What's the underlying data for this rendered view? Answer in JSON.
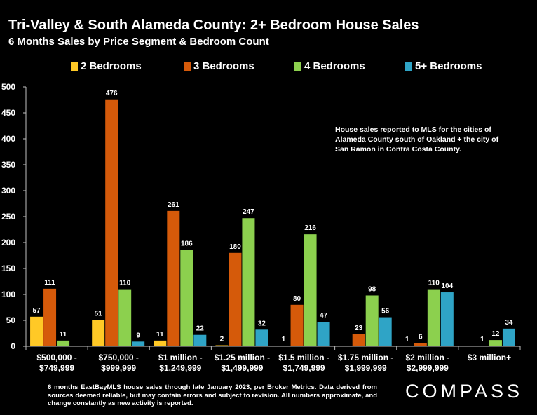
{
  "header": {
    "title": "Tri-Valley & South Alameda County: 2+ Bedroom House Sales",
    "subtitle": "6 Months Sales by Price Segment & Bedroom Count"
  },
  "legend": {
    "items": [
      {
        "label": "2 Bedrooms",
        "color": "#FFC926"
      },
      {
        "label": "3 Bedrooms",
        "color": "#D55A0A"
      },
      {
        "label": "4 Bedrooms",
        "color": "#8CD04E"
      },
      {
        "label": "5+ Bedrooms",
        "color": "#2FA4C6"
      }
    ],
    "placement": "top"
  },
  "chart_data": {
    "type": "bar",
    "categories": [
      [
        "$500,000 -",
        "$749,999"
      ],
      [
        "$750,000 -",
        "$999,999"
      ],
      [
        "$1 million -",
        "$1,249,999"
      ],
      [
        "$1.25 million -",
        "$1,499,999"
      ],
      [
        "$1.5 million -",
        "$1,749,999"
      ],
      [
        "$1.75 million -",
        "$1,999,999"
      ],
      [
        "$2 million -",
        "$2,999,999"
      ],
      [
        "$3 million+"
      ]
    ],
    "series": [
      {
        "name": "2 Bedrooms",
        "color": "#FFC926",
        "values": [
          57,
          51,
          11,
          2,
          1,
          null,
          1,
          null
        ]
      },
      {
        "name": "3 Bedrooms",
        "color": "#D55A0A",
        "values": [
          111,
          476,
          261,
          180,
          80,
          23,
          6,
          1
        ]
      },
      {
        "name": "4 Bedrooms",
        "color": "#8CD04E",
        "values": [
          11,
          110,
          186,
          247,
          216,
          98,
          110,
          12
        ]
      },
      {
        "name": "5+ Bedrooms",
        "color": "#2FA4C6",
        "values": [
          null,
          9,
          22,
          32,
          47,
          56,
          104,
          34
        ]
      }
    ],
    "ylim": [
      0,
      500
    ],
    "yticks": [
      0,
      50,
      100,
      150,
      200,
      250,
      300,
      350,
      400,
      450,
      500
    ],
    "grid": false
  },
  "annotation": "House sales reported to MLS for the cities of Alameda County south of Oakland + the city of San Ramon in Contra Costa County.",
  "footnote": "6 months EastBayMLS house sales through late January 2023, per Broker Metrics. Data derived from sources deemed reliable, but may contain errors and subject to revision. All numbers approximate, and change constantly as new activity is reported.",
  "brand": "COMPASS"
}
